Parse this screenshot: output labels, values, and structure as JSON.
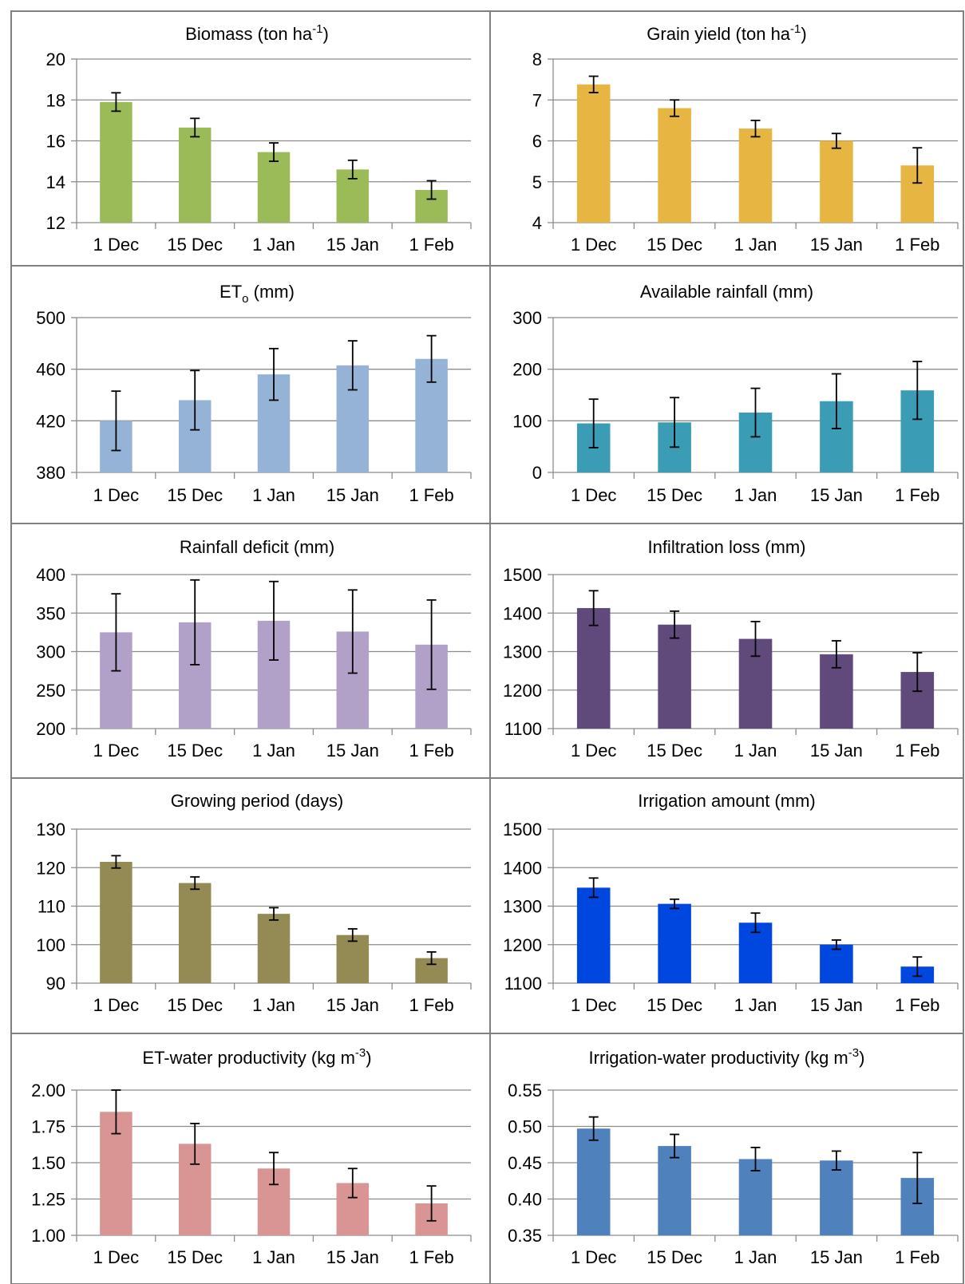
{
  "chart_data": [
    {
      "type": "bar",
      "title": "Biomass (ton ha-1)",
      "title_parts": {
        "text": "Biomass (ton ha",
        "sup": "-1",
        "after": ")"
      },
      "categories": [
        "1 Dec",
        "15 Dec",
        "1 Jan",
        "15 Jan",
        "1 Feb"
      ],
      "values": [
        17.9,
        16.65,
        15.45,
        14.6,
        13.6
      ],
      "errors": [
        0.45,
        0.45,
        0.45,
        0.45,
        0.45
      ],
      "ylim": [
        12,
        20
      ],
      "yticks": [
        "12",
        "14",
        "16",
        "18",
        "20"
      ],
      "color": "#9bbb59"
    },
    {
      "type": "bar",
      "title": "Grain yield (ton ha-1)",
      "title_parts": {
        "text": "Grain yield (ton ha",
        "sup": "-1",
        "after": ")"
      },
      "categories": [
        "1 Dec",
        "15 Dec",
        "1 Jan",
        "15 Jan",
        "1 Feb"
      ],
      "values": [
        7.38,
        6.8,
        6.3,
        6.0,
        5.4
      ],
      "errors": [
        0.2,
        0.2,
        0.2,
        0.18,
        0.43
      ],
      "ylim": [
        4,
        8
      ],
      "yticks": [
        "4",
        "5",
        "6",
        "7",
        "8"
      ],
      "color": "#e7b541"
    },
    {
      "type": "bar",
      "title": "ETo (mm)",
      "title_parts": {
        "text": "ET",
        "sub": "o",
        "after": " (mm)"
      },
      "categories": [
        "1 Dec",
        "15 Dec",
        "1 Jan",
        "15 Jan",
        "1 Feb"
      ],
      "values": [
        420,
        436,
        456,
        463,
        468
      ],
      "errors": [
        23,
        23,
        20,
        19,
        18
      ],
      "ylim": [
        380,
        500
      ],
      "yticks": [
        "380",
        "420",
        "460",
        "500"
      ],
      "color": "#95b3d7"
    },
    {
      "type": "bar",
      "title": "Available rainfall (mm)",
      "title_parts": {
        "text": "Available rainfall (mm)"
      },
      "categories": [
        "1 Dec",
        "15 Dec",
        "1 Jan",
        "15 Jan",
        "1 Feb"
      ],
      "values": [
        95,
        97,
        116,
        138,
        159
      ],
      "errors": [
        47,
        48,
        47,
        53,
        56
      ],
      "ylim": [
        0,
        300
      ],
      "yticks": [
        "0",
        "100",
        "200",
        "300"
      ],
      "color": "#3a9cb5"
    },
    {
      "type": "bar",
      "title": "Rainfall deficit (mm)",
      "title_parts": {
        "text": "Rainfall deficit (mm)"
      },
      "categories": [
        "1 Dec",
        "15 Dec",
        "1 Jan",
        "15 Jan",
        "1 Feb"
      ],
      "values": [
        325,
        338,
        340,
        326,
        309
      ],
      "errors": [
        50,
        55,
        51,
        54,
        58
      ],
      "ylim": [
        200,
        400
      ],
      "yticks": [
        "200",
        "250",
        "300",
        "350",
        "400"
      ],
      "color": "#b1a0c7"
    },
    {
      "type": "bar",
      "title": "Infiltration loss (mm)",
      "title_parts": {
        "text": "Infiltration loss (mm)"
      },
      "categories": [
        "1 Dec",
        "15 Dec",
        "1 Jan",
        "15 Jan",
        "1 Feb"
      ],
      "values": [
        1413,
        1370,
        1333,
        1293,
        1247
      ],
      "errors": [
        45,
        35,
        45,
        35,
        50
      ],
      "ylim": [
        1100,
        1500
      ],
      "yticks": [
        "1100",
        "1200",
        "1300",
        "1400",
        "1500"
      ],
      "color": "#604a7b"
    },
    {
      "type": "bar",
      "title": "Growing period (days)",
      "title_parts": {
        "text": "Growing period (days)"
      },
      "categories": [
        "1 Dec",
        "15 Dec",
        "1 Jan",
        "15 Jan",
        "1 Feb"
      ],
      "values": [
        121.5,
        116,
        108,
        102.5,
        96.5
      ],
      "errors": [
        1.6,
        1.6,
        1.6,
        1.6,
        1.6
      ],
      "ylim": [
        90,
        130
      ],
      "yticks": [
        "90",
        "100",
        "110",
        "120",
        "130"
      ],
      "color": "#948a54"
    },
    {
      "type": "bar",
      "title": "Irrigation amount (mm)",
      "title_parts": {
        "text": "Irrigation amount (mm)"
      },
      "categories": [
        "1 Dec",
        "15 Dec",
        "1 Jan",
        "15 Jan",
        "1 Feb"
      ],
      "values": [
        1348,
        1306,
        1257,
        1200,
        1143
      ],
      "errors": [
        25,
        12,
        25,
        12,
        25
      ],
      "ylim": [
        1100,
        1500
      ],
      "yticks": [
        "1100",
        "1200",
        "1300",
        "1400",
        "1500"
      ],
      "color": "#0047e0"
    },
    {
      "type": "bar",
      "title": "ET-water productivity (kg m-3)",
      "title_parts": {
        "text": "ET-water productivity (kg m",
        "sup": "-3",
        "after": ")"
      },
      "categories": [
        "1 Dec",
        "15 Dec",
        "1 Jan",
        "15 Jan",
        "1 Feb"
      ],
      "values": [
        1.85,
        1.63,
        1.46,
        1.36,
        1.22
      ],
      "errors": [
        0.15,
        0.14,
        0.11,
        0.1,
        0.12
      ],
      "ylim": [
        1.0,
        2.0
      ],
      "yticks": [
        "1.00",
        "1.25",
        "1.50",
        "1.75",
        "2.00"
      ],
      "color": "#d99594"
    },
    {
      "type": "bar",
      "title": "Irrigation-water productivity (kg m-3)",
      "title_parts": {
        "text": "Irrigation-water productivity (kg m",
        "sup": "-3",
        "after": ")"
      },
      "categories": [
        "1 Dec",
        "15 Dec",
        "1 Jan",
        "15 Jan",
        "1 Feb"
      ],
      "values": [
        0.497,
        0.473,
        0.455,
        0.453,
        0.429
      ],
      "errors": [
        0.016,
        0.016,
        0.016,
        0.013,
        0.035
      ],
      "ylim": [
        0.35,
        0.55
      ],
      "yticks": [
        "0.35",
        "0.40",
        "0.45",
        "0.50",
        "0.55"
      ],
      "color": "#4f81bd"
    }
  ]
}
